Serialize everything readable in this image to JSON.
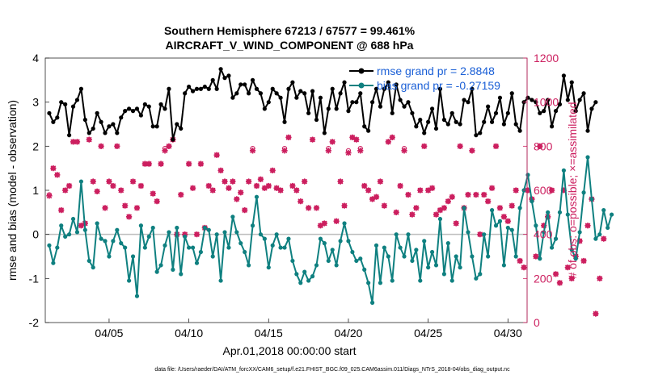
{
  "chart_data": {
    "type": "line",
    "title": "Southern Hemisphere 67213 / 67577 = 99.461%",
    "subtitle": "AIRCRAFT_V_WIND_COMPONENT @ 688 hPa",
    "xlabel": "Apr.01,2018 00:00:00 start",
    "ylabel_left": "rmse and bias (model - observation)",
    "ylabel_right": "# of obs: o=possible; ×=assimilated",
    "footer": "data file: /Users/raeder/DAI/ATM_forcXX/CAM6_setup/f.e21.FHIST_BGC.f09_025.CAM6assim.011/Diags_NTrS_2018-04/obs_diag_output.nc",
    "x_range_days": [
      1,
      31.2
    ],
    "ylim_left": [
      -2,
      4
    ],
    "ylim_right": [
      0,
      1200
    ],
    "xticks": [
      {
        "label": "04/05",
        "day": 5
      },
      {
        "label": "04/10",
        "day": 10
      },
      {
        "label": "04/15",
        "day": 15
      },
      {
        "label": "04/20",
        "day": 20
      },
      {
        "label": "04/25",
        "day": 25
      },
      {
        "label": "04/30",
        "day": 30
      }
    ],
    "yticks_left": [
      "-2",
      "-1",
      "0",
      "1",
      "2",
      "3",
      "4"
    ],
    "yticks_right": [
      "0",
      "200",
      "400",
      "600",
      "800",
      "1000",
      "1200"
    ],
    "colors": {
      "rmse": "#000000",
      "bias": "#0f8080",
      "obs": "#cc1f5f",
      "zero": "#bdbdbd"
    },
    "legend": [
      {
        "label": "rmse grand pr = 2.8848",
        "series": "rmse"
      },
      {
        "label": "bias grand pr = -0.27159",
        "series": "bias"
      }
    ],
    "series": [
      {
        "name": "rmse",
        "axis": "left",
        "values": [
          2.75,
          2.55,
          2.65,
          3.0,
          2.95,
          2.25,
          2.9,
          3.05,
          3.3,
          2.6,
          2.3,
          2.4,
          2.75,
          2.55,
          2.3,
          2.45,
          2.5,
          2.3,
          2.65,
          2.8,
          2.85,
          2.8,
          2.85,
          2.7,
          2.95,
          2.9,
          2.45,
          2.45,
          2.95,
          2.85,
          3.3,
          2.15,
          2.5,
          2.4,
          3.2,
          3.35,
          3.25,
          3.3,
          3.3,
          3.35,
          3.3,
          3.5,
          3.3,
          3.75,
          3.55,
          3.6,
          3.1,
          3.2,
          3.4,
          3.4,
          3.2,
          3.5,
          3.3,
          3.2,
          2.85,
          3.0,
          3.3,
          3.2,
          3.1,
          2.55,
          3.3,
          3.45,
          3.1,
          3.25,
          3.2,
          2.75,
          3.25,
          2.6,
          3.1,
          2.3,
          2.85,
          3.3,
          2.85,
          3.2,
          3.45,
          2.8,
          3.0,
          3.0,
          3.2,
          2.45,
          2.35,
          3.0,
          3.3,
          2.9,
          3.3,
          3.45,
          2.75,
          3.4,
          3.05,
          2.9,
          3.0,
          2.75,
          2.45,
          2.6,
          2.3,
          2.55,
          2.85,
          2.4,
          3.3,
          2.6,
          2.5,
          2.75,
          2.55,
          2.5,
          3.05,
          3.0,
          3.3,
          2.25,
          2.3,
          2.55,
          2.9,
          2.55,
          2.75,
          3.1,
          2.5,
          2.75,
          3.2,
          2.5,
          2.35,
          3.0,
          3.1,
          3.05,
          3.0,
          2.75,
          2.8,
          3.05,
          2.45,
          2.8,
          2.95,
          3.6,
          3.05,
          3.45,
          2.8,
          3.05,
          3.2,
          2.35,
          2.85,
          3.0
        ]
      },
      {
        "name": "bias",
        "axis": "left",
        "values": [
          -0.25,
          -0.65,
          -0.3,
          0.2,
          -0.05,
          0.0,
          0.35,
          0.05,
          1.2,
          0.1,
          -0.6,
          -0.75,
          0.25,
          -0.1,
          -0.15,
          -0.5,
          -0.15,
          0.1,
          -0.2,
          -0.3,
          -1.05,
          -0.5,
          -1.4,
          0.2,
          -0.3,
          -0.05,
          0.15,
          -0.85,
          -0.7,
          -0.25,
          0.05,
          -0.8,
          0.15,
          -0.9,
          -0.05,
          -0.3,
          -0.3,
          -0.65,
          -0.4,
          0.15,
          0.1,
          -0.5,
          0.0,
          -1.05,
          0.05,
          -0.3,
          0.4,
          0.05,
          -0.2,
          -0.4,
          -0.7,
          0.2,
          0.85,
          0.0,
          -0.1,
          -0.75,
          -0.25,
          0.0,
          -0.3,
          -0.3,
          -0.1,
          -0.6,
          -0.9,
          -1.1,
          -0.85,
          -1.05,
          -0.95,
          -0.7,
          -0.1,
          -0.2,
          -0.6,
          -0.35,
          -0.7,
          -0.15,
          0.25,
          -0.15,
          -0.4,
          -0.6,
          -0.55,
          -0.8,
          -1.1,
          -1.55,
          -0.25,
          -1.1,
          -0.3,
          -0.5,
          -1.05,
          0.0,
          -0.3,
          -0.5,
          0.0,
          -0.6,
          -0.35,
          -1.05,
          -0.15,
          -0.75,
          -0.4,
          -0.7,
          0.35,
          -0.9,
          -0.2,
          -1.05,
          -0.5,
          -0.75,
          0.6,
          0.05,
          -0.5,
          -1.0,
          -0.9,
          0.0,
          -0.5,
          0.55,
          0.2,
          0.3,
          -0.7,
          0.15,
          0.1,
          -0.5,
          0.6,
          1.0,
          1.35,
          0.75,
          0.2,
          -0.55,
          0.05,
          0.5,
          -0.3,
          -0.1,
          0.5,
          1.45,
          0.45,
          -0.35,
          -0.55,
          0.05,
          0.95,
          1.75,
          0.8,
          -0.1,
          0.0,
          0.55,
          0.15,
          0.45
        ]
      },
      {
        "name": "obs_assimilated",
        "axis": "right",
        "values": [
          575,
          700,
          670,
          510,
          600,
          620,
          820,
          820,
          440,
          450,
          830,
          640,
          595,
          800,
          520,
          640,
          620,
          800,
          600,
          530,
          480,
          640,
          520,
          620,
          720,
          720,
          585,
          550,
          720,
          780,
          800,
          830,
          400,
          580,
          400,
          720,
          610,
          400,
          720,
          430,
          620,
          600,
          760,
          690,
          640,
          610,
          640,
          560,
          590,
          510,
          640,
          780,
          620,
          650,
          610,
          620,
          690,
          610,
          600,
          780,
          840,
          620,
          600,
          550,
          640,
          520,
          830,
          520,
          440,
          450,
          780,
          820,
          460,
          640,
          530,
          770,
          840,
          830,
          780,
          620,
          600,
          560,
          570,
          640,
          530,
          820,
          840,
          500,
          620,
          780,
          580,
          490,
          520,
          600,
          800,
          600,
          610,
          490,
          510,
          520,
          550,
          570,
          450,
          800,
          520,
          580,
          780,
          580,
          400,
          580,
          550,
          610,
          800,
          520,
          480,
          460,
          530,
          600,
          280,
          250,
          600,
          560,
          300,
          800,
          440,
          480,
          600,
          220,
          180,
          600,
          250,
          200,
          300,
          370,
          280,
          440,
          560,
          40,
          200,
          380
        ]
      },
      {
        "name": "obs_possible",
        "axis": "right",
        "values": [
          580,
          700,
          670,
          510,
          600,
          620,
          820,
          820,
          440,
          450,
          830,
          640,
          595,
          800,
          520,
          640,
          620,
          800,
          600,
          530,
          480,
          640,
          520,
          620,
          720,
          720,
          585,
          550,
          720,
          790,
          800,
          830,
          400,
          580,
          400,
          720,
          610,
          400,
          720,
          430,
          620,
          600,
          760,
          690,
          640,
          610,
          640,
          560,
          590,
          510,
          640,
          790,
          620,
          650,
          610,
          620,
          690,
          610,
          600,
          790,
          840,
          620,
          600,
          550,
          640,
          520,
          830,
          520,
          440,
          450,
          790,
          820,
          460,
          640,
          530,
          780,
          840,
          830,
          790,
          620,
          600,
          560,
          570,
          640,
          530,
          820,
          840,
          500,
          620,
          790,
          580,
          490,
          520,
          600,
          800,
          600,
          610,
          490,
          510,
          520,
          550,
          570,
          450,
          800,
          520,
          580,
          780,
          580,
          400,
          580,
          550,
          610,
          800,
          520,
          480,
          460,
          530,
          600,
          280,
          250,
          600,
          560,
          300,
          800,
          440,
          480,
          600,
          220,
          180,
          600,
          250,
          200,
          300,
          370,
          280,
          440,
          560,
          40,
          200,
          380
        ]
      }
    ]
  }
}
